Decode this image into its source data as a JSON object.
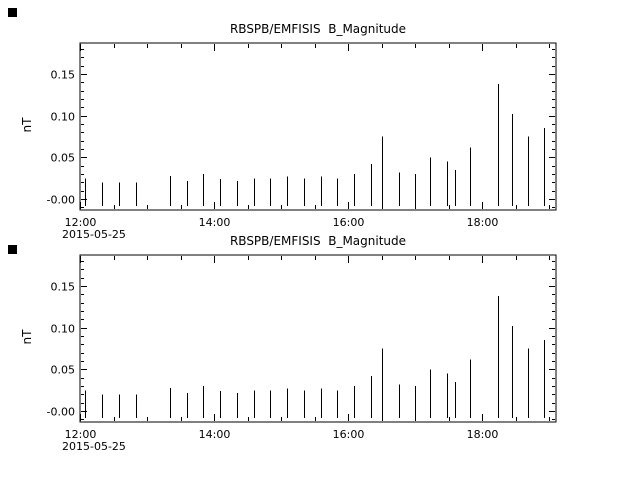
{
  "colors": {
    "background": "#ffffff",
    "foreground": "#000000"
  },
  "chart_data": [
    {
      "type": "line",
      "style": "vertical-spikes",
      "title": "RBSPB/EMFISIS  B_Magnitude",
      "ylabel": "nT",
      "xlabel": "2015-05-25",
      "xlim": [
        12.0,
        19.1
      ],
      "ylim": [
        -0.013,
        0.187
      ],
      "xticks": [
        {
          "v": 12,
          "label": "12:00"
        },
        {
          "v": 14,
          "label": "14:00"
        },
        {
          "v": 16,
          "label": "16:00"
        },
        {
          "v": 18,
          "label": "18:00"
        }
      ],
      "xminor_step": 0.5,
      "yticks": [
        {
          "v": 0.0,
          "label": "-0.00"
        },
        {
          "v": 0.05,
          "label": "0.05"
        },
        {
          "v": 0.1,
          "label": "0.10"
        },
        {
          "v": 0.15,
          "label": "0.15"
        }
      ],
      "yminor_step": 0.01,
      "spike_base": -0.008,
      "spikes": [
        [
          12.08,
          0.025
        ],
        [
          12.33,
          0.02
        ],
        [
          12.58,
          0.02
        ],
        [
          12.83,
          0.02
        ],
        [
          13.34,
          0.028
        ],
        [
          13.59,
          0.022
        ],
        [
          13.84,
          0.03
        ],
        [
          14.09,
          0.024
        ],
        [
          14.34,
          0.022
        ],
        [
          14.59,
          0.025
        ],
        [
          14.84,
          0.025
        ],
        [
          15.09,
          0.027
        ],
        [
          15.34,
          0.025
        ],
        [
          15.59,
          0.027
        ],
        [
          15.84,
          0.025
        ],
        [
          16.09,
          0.03
        ],
        [
          16.34,
          0.042
        ],
        [
          16.51,
          0.075
        ],
        [
          16.76,
          0.032
        ],
        [
          17.0,
          0.03
        ],
        [
          17.22,
          0.05
        ],
        [
          17.47,
          0.045
        ],
        [
          17.6,
          0.035
        ],
        [
          17.82,
          0.062
        ],
        [
          18.23,
          0.138
        ],
        [
          18.45,
          0.102
        ],
        [
          18.68,
          0.075
        ],
        [
          18.92,
          0.085
        ]
      ]
    },
    {
      "type": "line",
      "style": "vertical-spikes",
      "title": "RBSPB/EMFISIS  B_Magnitude",
      "ylabel": "nT",
      "xlabel": "2015-05-25",
      "xlim": [
        12.0,
        19.1
      ],
      "ylim": [
        -0.013,
        0.187
      ],
      "xticks": [
        {
          "v": 12,
          "label": "12:00"
        },
        {
          "v": 14,
          "label": "14:00"
        },
        {
          "v": 16,
          "label": "16:00"
        },
        {
          "v": 18,
          "label": "18:00"
        }
      ],
      "xminor_step": 0.5,
      "yticks": [
        {
          "v": 0.0,
          "label": "-0.00"
        },
        {
          "v": 0.05,
          "label": "0.05"
        },
        {
          "v": 0.1,
          "label": "0.10"
        },
        {
          "v": 0.15,
          "label": "0.15"
        }
      ],
      "yminor_step": 0.01,
      "spike_base": -0.008,
      "spikes": [
        [
          12.08,
          0.025
        ],
        [
          12.33,
          0.02
        ],
        [
          12.58,
          0.02
        ],
        [
          12.83,
          0.02
        ],
        [
          13.34,
          0.028
        ],
        [
          13.59,
          0.022
        ],
        [
          13.84,
          0.03
        ],
        [
          14.09,
          0.024
        ],
        [
          14.34,
          0.022
        ],
        [
          14.59,
          0.025
        ],
        [
          14.84,
          0.025
        ],
        [
          15.09,
          0.027
        ],
        [
          15.34,
          0.025
        ],
        [
          15.59,
          0.027
        ],
        [
          15.84,
          0.025
        ],
        [
          16.09,
          0.03
        ],
        [
          16.34,
          0.042
        ],
        [
          16.51,
          0.075
        ],
        [
          16.76,
          0.032
        ],
        [
          17.0,
          0.03
        ],
        [
          17.22,
          0.05
        ],
        [
          17.47,
          0.045
        ],
        [
          17.6,
          0.035
        ],
        [
          17.82,
          0.062
        ],
        [
          18.23,
          0.138
        ],
        [
          18.45,
          0.102
        ],
        [
          18.68,
          0.075
        ],
        [
          18.92,
          0.085
        ]
      ]
    }
  ]
}
